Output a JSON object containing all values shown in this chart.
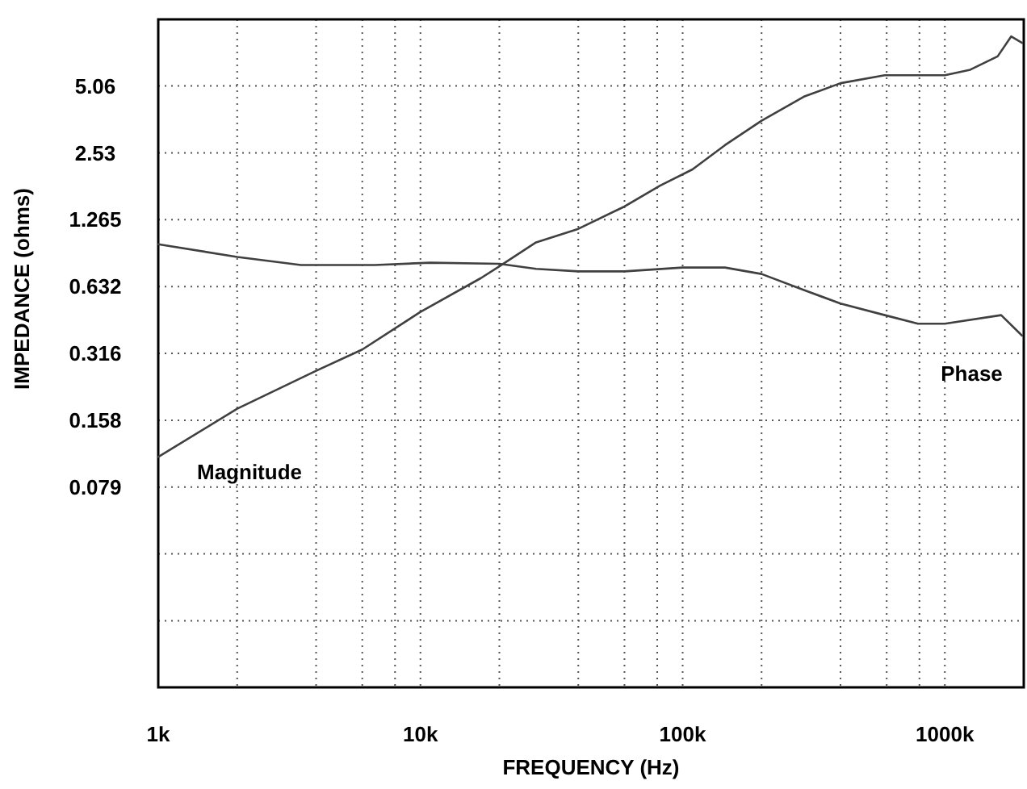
{
  "chart_data": {
    "type": "line",
    "xlabel": "FREQUENCY (Hz)",
    "ylabel": "IMPEDANCE (ohms)",
    "log": "xy",
    "grid": true,
    "marker": "none",
    "line_style": "solid",
    "xlim": [
      1000,
      2000000
    ],
    "xticks": [
      {
        "value": 1000,
        "label": "1k"
      },
      {
        "value": 2000,
        "label": null
      },
      {
        "value": 4000,
        "label": null
      },
      {
        "value": 6000,
        "label": null
      },
      {
        "value": 8000,
        "label": null
      },
      {
        "value": 10000,
        "label": "10k"
      },
      {
        "value": 20000,
        "label": null
      },
      {
        "value": 40000,
        "label": null
      },
      {
        "value": 60000,
        "label": null
      },
      {
        "value": 80000,
        "label": null
      },
      {
        "value": 100000,
        "label": "100k"
      },
      {
        "value": 200000,
        "label": null
      },
      {
        "value": 400000,
        "label": null
      },
      {
        "value": 600000,
        "label": null
      },
      {
        "value": 800000,
        "label": null
      },
      {
        "value": 1000000,
        "label": "1000k"
      }
    ],
    "ylim": [
      0.0099,
      10.1
    ],
    "yticks": [
      {
        "value": 0.01975,
        "label": null
      },
      {
        "value": 0.0395,
        "label": null
      },
      0.079,
      0.158,
      0.316,
      0.632,
      1.265,
      2.53,
      5.06
    ],
    "series": [
      {
        "name": "Magnitude",
        "color": "#404040",
        "x": [
          1000,
          2000,
          4000,
          6000,
          10000,
          17000,
          20000,
          27600,
          40000,
          60000,
          82000,
          109000,
          145000,
          200000,
          290000,
          400000,
          590000,
          1000000,
          1250000,
          1590000,
          1790000,
          1970000
        ],
        "values": [
          0.108,
          0.178,
          0.264,
          0.329,
          0.486,
          0.69,
          0.78,
          1.0,
          1.15,
          1.45,
          1.8,
          2.13,
          2.74,
          3.53,
          4.53,
          5.21,
          5.66,
          5.66,
          5.99,
          6.88,
          8.46,
          7.91
        ]
      },
      {
        "name": "Phase",
        "color": "#404040",
        "x": [
          1000,
          2000,
          3500,
          6700,
          10900,
          20000,
          27600,
          40000,
          60000,
          100000,
          145000,
          200000,
          290000,
          400000,
          590000,
          790000,
          1000000,
          1640000,
          1970000
        ],
        "values": [
          0.98,
          0.86,
          0.79,
          0.79,
          0.81,
          0.8,
          0.76,
          0.74,
          0.74,
          0.77,
          0.77,
          0.72,
          0.61,
          0.53,
          0.47,
          0.43,
          0.43,
          0.47,
          0.38
        ]
      }
    ]
  }
}
